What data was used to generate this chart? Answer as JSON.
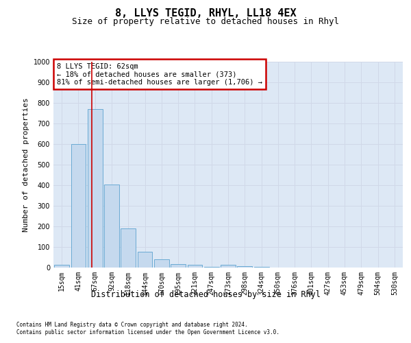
{
  "title": "8, LLYS TEGID, RHYL, LL18 4EX",
  "subtitle": "Size of property relative to detached houses in Rhyl",
  "xlabel_bottom": "Distribution of detached houses by size in Rhyl",
  "ylabel": "Number of detached properties",
  "footer_line1": "Contains HM Land Registry data © Crown copyright and database right 2024.",
  "footer_line2": "Contains public sector information licensed under the Open Government Licence v3.0.",
  "bin_labels": [
    "15sqm",
    "41sqm",
    "67sqm",
    "92sqm",
    "118sqm",
    "144sqm",
    "170sqm",
    "195sqm",
    "221sqm",
    "247sqm",
    "273sqm",
    "298sqm",
    "324sqm",
    "350sqm",
    "376sqm",
    "401sqm",
    "427sqm",
    "453sqm",
    "479sqm",
    "504sqm",
    "530sqm"
  ],
  "bar_values": [
    15,
    600,
    770,
    405,
    190,
    78,
    40,
    18,
    15,
    5,
    14,
    8,
    5,
    0,
    0,
    0,
    0,
    0,
    0,
    0,
    0
  ],
  "bar_color": "#c5d9ee",
  "bar_edge_color": "#6aaad4",
  "red_line_x": 1.82,
  "annotation_text": "8 LLYS TEGID: 62sqm\n← 18% of detached houses are smaller (373)\n81% of semi-detached houses are larger (1,706) →",
  "annotation_box_color": "#ffffff",
  "annotation_box_edge": "#cc0000",
  "vline_color": "#cc0000",
  "ylim": [
    0,
    1000
  ],
  "yticks": [
    0,
    100,
    200,
    300,
    400,
    500,
    600,
    700,
    800,
    900,
    1000
  ],
  "grid_color": "#d0d8e8",
  "bg_color": "#dde8f5",
  "title_fontsize": 11,
  "subtitle_fontsize": 9,
  "ylabel_fontsize": 8,
  "xlabel_fontsize": 8.5,
  "tick_fontsize": 7,
  "annotation_fontsize": 7.5,
  "footer_fontsize": 5.5
}
